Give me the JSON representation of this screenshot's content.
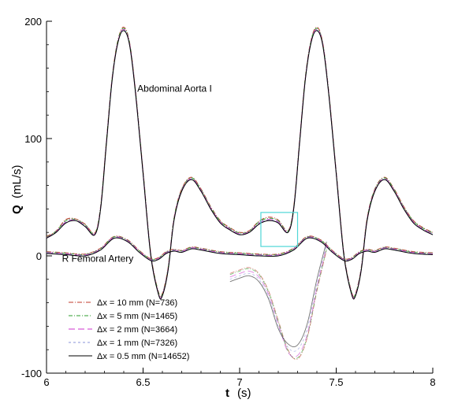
{
  "chart_data": {
    "type": "line",
    "xlabel": "t",
    "xlabel_unit": "(s)",
    "ylabel": "Q",
    "ylabel_unit": "(mL/s)",
    "xlim": [
      6,
      8
    ],
    "ylim": [
      -100,
      200
    ],
    "x_ticks": [
      6,
      6.5,
      7,
      7.5,
      8
    ],
    "x_tick_labels": [
      "6",
      "6.5",
      "7",
      "7.5",
      "8"
    ],
    "y_ticks": [
      -100,
      0,
      100,
      200
    ],
    "y_tick_labels": [
      "-100",
      "0",
      "100",
      "200"
    ],
    "grid": false,
    "legend_position": "bottom-left",
    "annotations": [
      {
        "text": "Abdominal Aorta I",
        "x": 6.47,
        "y": 140
      },
      {
        "text": "R Femoral Artery",
        "x": 6.08,
        "y": -5
      }
    ],
    "series": [
      {
        "name": "Δx = 10 mm (N=736)",
        "color": "#c0392b",
        "dash": "6 2 1 2",
        "opacity": 0.9
      },
      {
        "name": "Δx = 5 mm (N=1465)",
        "color": "#2e9e2e",
        "dash": "5 2 1 2",
        "opacity": 0.9
      },
      {
        "name": "Δx = 2 mm (N=3664)",
        "color": "#cc33cc",
        "dash": "8 4",
        "opacity": 0.9
      },
      {
        "name": "Δx = 1 mm (N=7326)",
        "color": "#8a93d8",
        "dash": "3 3",
        "opacity": 0.9
      },
      {
        "name": "Δx = 0.5 mm (N=14652)",
        "color": "#000000",
        "dash": "",
        "opacity": 1
      }
    ],
    "aorta_x": [
      6.0,
      6.05,
      6.1,
      6.15,
      6.2,
      6.25,
      6.28,
      6.31,
      6.34,
      6.37,
      6.4,
      6.43,
      6.46,
      6.5,
      6.54,
      6.58,
      6.6,
      6.63,
      6.66,
      6.7,
      6.75,
      6.8,
      6.85,
      6.9,
      6.95,
      7.0,
      7.05,
      7.1,
      7.15,
      7.2,
      7.25,
      7.28,
      7.31,
      7.34,
      7.37,
      7.4,
      7.43,
      7.46,
      7.5,
      7.54,
      7.58,
      7.6,
      7.63,
      7.66,
      7.7,
      7.75,
      7.8,
      7.85,
      7.9,
      7.95,
      8.0
    ],
    "aorta_y": [
      15,
      20,
      28,
      30,
      25,
      18,
      40,
      95,
      150,
      182,
      192,
      180,
      140,
      70,
      0,
      -33,
      -34,
      -12,
      30,
      55,
      65,
      55,
      40,
      28,
      22,
      18,
      20,
      27,
      30,
      28,
      20,
      40,
      95,
      150,
      182,
      192,
      180,
      140,
      70,
      0,
      -33,
      -34,
      -12,
      30,
      55,
      65,
      55,
      40,
      28,
      22,
      18
    ],
    "aorta_dy": [
      [
        1.5,
        1.2,
        3,
        1.5,
        2,
        1.5,
        2,
        2,
        2,
        2,
        3,
        2,
        2,
        2,
        2,
        2,
        2,
        2,
        2,
        2,
        2,
        2,
        2,
        2,
        2,
        2,
        1.5,
        2.5,
        3,
        2.5,
        1.5,
        2,
        2,
        2,
        2,
        3,
        2,
        2,
        2,
        2,
        2,
        2,
        2,
        2,
        2,
        2,
        2,
        2,
        2,
        2,
        2
      ],
      [
        1,
        1,
        2,
        1,
        1.5,
        1,
        1.5,
        1.5,
        1.5,
        1.5,
        2,
        1.5,
        1.5,
        1.5,
        1.5,
        1.5,
        1.5,
        1.5,
        1.5,
        1.5,
        1.5,
        1.5,
        1.5,
        1.5,
        1.5,
        1.5,
        1,
        2,
        2,
        2,
        1,
        1.5,
        1.5,
        1.5,
        1.5,
        2,
        1.5,
        1.5,
        1.5,
        1.5,
        1.5,
        1.5,
        1.5,
        1.5,
        1.5,
        1.5,
        1.5,
        1.5,
        1.5,
        1.5,
        1.5
      ],
      [
        0.5,
        0.5,
        1,
        0.5,
        0.8,
        0.5,
        0.8,
        0.8,
        0.8,
        0.8,
        1,
        0.8,
        0.8,
        0.8,
        0.8,
        0.8,
        0.8,
        0.8,
        0.8,
        0.8,
        0.8,
        0.8,
        0.8,
        0.8,
        0.8,
        0.8,
        0.5,
        1,
        1,
        1,
        0.5,
        0.8,
        0.8,
        0.8,
        0.8,
        1,
        0.8,
        0.8,
        0.8,
        0.8,
        0.8,
        0.8,
        0.8,
        0.8,
        0.8,
        0.8,
        0.8,
        0.8,
        0.8,
        0.8,
        0.8
      ],
      [
        0.2,
        0.2,
        0.4,
        0.2,
        0.3,
        0.2,
        0.3,
        0.3,
        0.3,
        0.3,
        0.4,
        0.3,
        0.3,
        0.3,
        0.3,
        0.3,
        0.3,
        0.3,
        0.3,
        0.3,
        0.3,
        0.3,
        0.3,
        0.3,
        0.3,
        0.3,
        0.2,
        0.4,
        0.4,
        0.4,
        0.2,
        0.3,
        0.3,
        0.3,
        0.3,
        0.4,
        0.3,
        0.3,
        0.3,
        0.3,
        0.3,
        0.3,
        0.3,
        0.3,
        0.3,
        0.3,
        0.3,
        0.3,
        0.3,
        0.3,
        0.3
      ],
      [
        0,
        0,
        0,
        0,
        0,
        0,
        0,
        0,
        0,
        0,
        0,
        0,
        0,
        0,
        0,
        0,
        0,
        0,
        0,
        0,
        0,
        0,
        0,
        0,
        0,
        0,
        0,
        0,
        0,
        0,
        0,
        0,
        0,
        0,
        0,
        0,
        0,
        0,
        0,
        0,
        0,
        0,
        0,
        0,
        0,
        0,
        0,
        0,
        0,
        0,
        0
      ]
    ],
    "femoral_x": [
      6.0,
      6.1,
      6.2,
      6.28,
      6.35,
      6.42,
      6.48,
      6.54,
      6.58,
      6.62,
      6.66,
      6.7,
      6.75,
      6.8,
      6.9,
      7.0,
      7.1,
      7.2,
      7.28,
      7.35,
      7.42,
      7.48,
      7.54,
      7.58,
      7.62,
      7.66,
      7.7,
      7.75,
      7.8,
      7.9,
      8.0
    ],
    "femoral_y": [
      2,
      1,
      0,
      5,
      15,
      12,
      3,
      -4,
      -3,
      2,
      4,
      3,
      6,
      5,
      2,
      1,
      0,
      0,
      5,
      15,
      12,
      3,
      -4,
      -3,
      2,
      4,
      3,
      6,
      5,
      2,
      1
    ],
    "zoom_box": {
      "x": [
        7.11,
        7.3
      ],
      "y": [
        8,
        37
      ]
    },
    "inset_curves": [
      [
        -15,
        -12,
        -10,
        -15,
        -30,
        -55,
        -80,
        -88,
        -70,
        -30,
        5
      ],
      [
        -16,
        -13,
        -11,
        -16,
        -31,
        -56,
        -81,
        -87,
        -69,
        -29,
        6
      ],
      [
        -18,
        -15,
        -13,
        -18,
        -33,
        -58,
        -82,
        -85,
        -67,
        -27,
        8
      ],
      [
        -20,
        -17,
        -15,
        -20,
        -35,
        -60,
        -78,
        -80,
        -62,
        -24,
        10
      ],
      [
        -22,
        -19,
        -17,
        -22,
        -37,
        -62,
        -75,
        -76,
        -58,
        -20,
        12
      ]
    ],
    "inset_x": [
      6.95,
      7.0,
      7.05,
      7.1,
      7.15,
      7.2,
      7.25,
      7.3,
      7.35,
      7.4,
      7.45
    ]
  }
}
